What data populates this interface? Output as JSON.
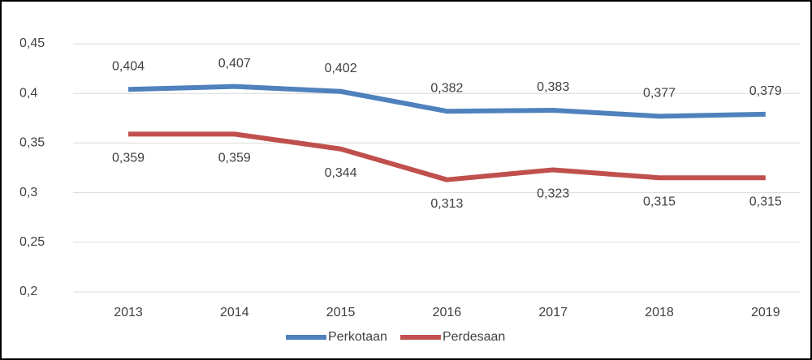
{
  "chart_data": {
    "type": "line",
    "categories": [
      "2013",
      "2014",
      "2015",
      "2016",
      "2017",
      "2018",
      "2019"
    ],
    "series": [
      {
        "name": "Perkotaan",
        "color": "#4f81bd",
        "values": [
          0.404,
          0.407,
          0.402,
          0.382,
          0.383,
          0.377,
          0.379
        ],
        "value_labels": [
          "0,404",
          "0,407",
          "0,402",
          "0,382",
          "0,383",
          "0,377",
          "0,379"
        ]
      },
      {
        "name": "Perdesaan",
        "color": "#c0504d",
        "values": [
          0.359,
          0.359,
          0.344,
          0.313,
          0.323,
          0.315,
          0.315
        ],
        "value_labels": [
          "0,359",
          "0,359",
          "0,344",
          "0,313",
          "0,323",
          "0,315",
          "0,315"
        ]
      }
    ],
    "ylim": [
      0.2,
      0.45
    ],
    "yticks": [
      {
        "value": 0.2,
        "label": "0,2"
      },
      {
        "value": 0.25,
        "label": "0,25"
      },
      {
        "value": 0.3,
        "label": "0,3"
      },
      {
        "value": 0.35,
        "label": "0,35"
      },
      {
        "value": 0.4,
        "label": "0,4"
      },
      {
        "value": 0.45,
        "label": "0,45"
      }
    ],
    "grid": true,
    "legend": "bottom"
  }
}
